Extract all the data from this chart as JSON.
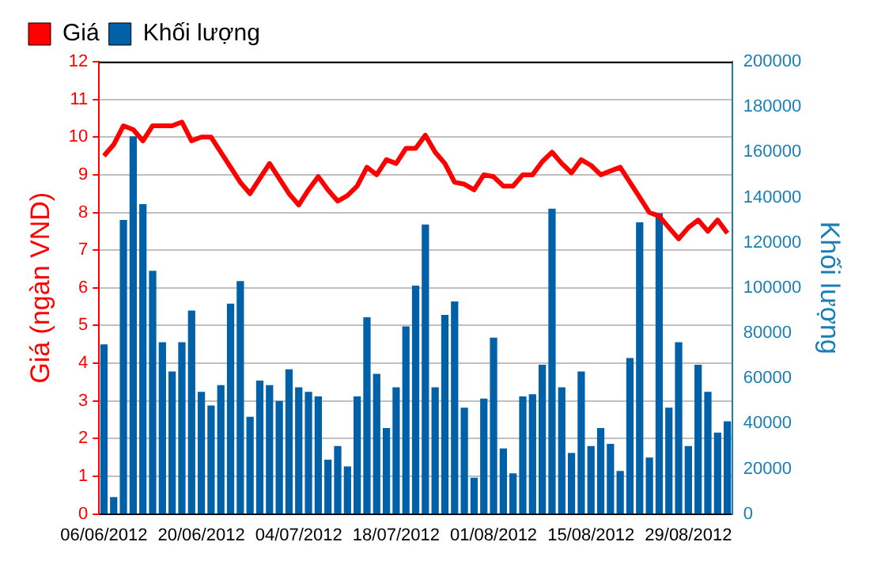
{
  "chart_data": {
    "type": "bar",
    "categories": [
      "06/06/2012",
      null,
      null,
      null,
      null,
      null,
      null,
      null,
      null,
      null,
      "20/06/2012",
      null,
      null,
      null,
      null,
      null,
      null,
      null,
      null,
      null,
      "04/07/2012",
      null,
      null,
      null,
      null,
      null,
      null,
      null,
      null,
      null,
      "18/07/2012",
      null,
      null,
      null,
      null,
      null,
      null,
      null,
      null,
      null,
      "01/08/2012",
      null,
      null,
      null,
      null,
      null,
      null,
      null,
      null,
      null,
      "15/08/2012",
      null,
      null,
      null,
      null,
      null,
      null,
      null,
      null,
      null,
      "29/08/2012",
      null,
      null,
      null,
      null
    ],
    "series": [
      {
        "name": "Giá",
        "type": "line",
        "color": "#ff0000",
        "values": [
          9.5,
          9.8,
          10.3,
          10.2,
          9.9,
          10.3,
          10.3,
          10.3,
          10.4,
          9.9,
          10.0,
          10.0,
          9.6,
          9.2,
          8.8,
          8.5,
          8.9,
          9.3,
          8.9,
          8.5,
          8.2,
          8.6,
          8.95,
          8.6,
          8.3,
          8.45,
          8.7,
          9.2,
          9.0,
          9.4,
          9.3,
          9.7,
          9.7,
          10.05,
          9.6,
          9.3,
          8.8,
          8.75,
          8.6,
          9.0,
          8.95,
          8.7,
          8.7,
          9.0,
          9.0,
          9.35,
          9.6,
          9.3,
          9.05,
          9.4,
          9.25,
          9.0,
          9.1,
          9.2,
          8.8,
          8.4,
          8.0,
          7.9,
          7.6,
          7.3,
          7.6,
          7.8,
          7.5,
          7.8,
          7.45
        ]
      },
      {
        "name": "Khối lượng",
        "axis": "y2",
        "color": "#0060a8",
        "values": [
          75000,
          7500,
          130000,
          167000,
          137000,
          107500,
          76000,
          63000,
          76000,
          90000,
          54000,
          48000,
          57000,
          93000,
          103000,
          43000,
          59000,
          57000,
          50000,
          64000,
          56000,
          54000,
          52000,
          24000,
          30000,
          21000,
          52000,
          87000,
          62000,
          38000,
          56000,
          83000,
          101000,
          128000,
          56000,
          88000,
          94000,
          47000,
          16000,
          51000,
          78000,
          29000,
          18000,
          52000,
          53000,
          66000,
          135000,
          56000,
          27000,
          63000,
          30000,
          38000,
          31000,
          19000,
          69000,
          129000,
          25000,
          133000,
          47000,
          76000,
          30000,
          66000,
          54000,
          36000,
          41000
        ]
      }
    ],
    "ylabel": "Giá (ngàn VND)",
    "y2label": "Khối lượng",
    "ylim": [
      0,
      12
    ],
    "yticks": [
      0,
      1,
      2,
      3,
      4,
      5,
      6,
      7,
      8,
      9,
      10,
      11,
      12
    ],
    "y2lim": [
      0,
      200000
    ],
    "y2ticks": [
      0,
      20000,
      40000,
      60000,
      80000,
      100000,
      120000,
      140000,
      160000,
      180000,
      200000
    ],
    "grid": "y",
    "legend": "top left"
  }
}
